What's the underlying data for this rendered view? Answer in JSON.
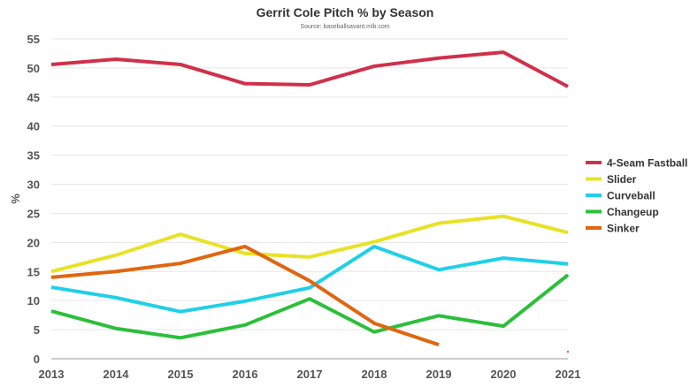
{
  "chart_data": {
    "type": "line",
    "title": "Gerrit Cole Pitch % by Season",
    "subtitle": "Source: baseballsavant.mlb.com",
    "xlabel": "",
    "ylabel": "%",
    "x": [
      2013,
      2014,
      2015,
      2016,
      2017,
      2018,
      2019,
      2020,
      2021
    ],
    "ylim": [
      0,
      55
    ],
    "yticks": [
      0,
      5,
      10,
      15,
      20,
      25,
      30,
      35,
      40,
      45,
      50,
      55
    ],
    "grid": true,
    "legend_position": "right",
    "series": [
      {
        "name": "4-Seam Fastball",
        "color": "#d0304a",
        "values": [
          50.6,
          51.5,
          50.6,
          47.3,
          47.1,
          50.3,
          51.7,
          52.7,
          46.8
        ]
      },
      {
        "name": "Slider",
        "color": "#e8e225",
        "values": [
          15.0,
          17.8,
          21.4,
          18.1,
          17.5,
          20.1,
          23.3,
          24.5,
          21.7
        ]
      },
      {
        "name": "Curveball",
        "color": "#1fd0e8",
        "values": [
          12.3,
          10.5,
          8.1,
          9.9,
          12.2,
          19.3,
          15.3,
          17.3,
          16.3
        ]
      },
      {
        "name": "Changeup",
        "color": "#2bbf3a",
        "values": [
          8.2,
          5.2,
          3.6,
          5.8,
          10.3,
          4.6,
          7.4,
          5.6,
          14.4
        ]
      },
      {
        "name": "Sinker",
        "color": "#e0660f",
        "values": [
          14.0,
          15.0,
          16.4,
          19.3,
          13.4,
          6.1,
          2.4,
          null,
          1.2
        ]
      }
    ]
  }
}
